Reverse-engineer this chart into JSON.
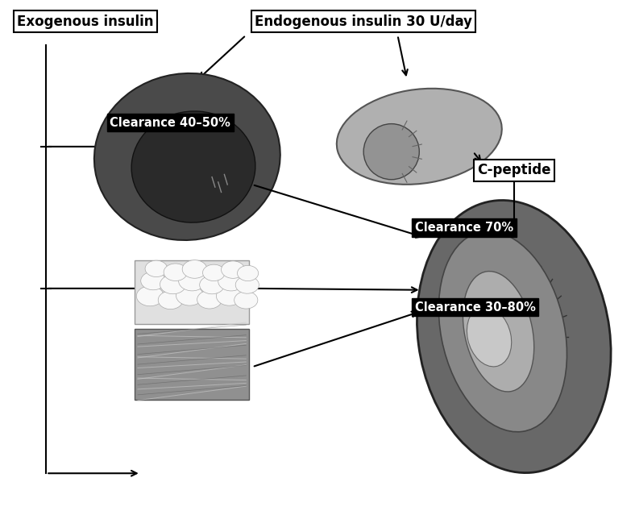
{
  "fig_width": 7.88,
  "fig_height": 6.34,
  "bg_color": "#ffffff",
  "labels": {
    "exogenous": "Exogenous insulin",
    "endogenous": "Endogenous insulin 30 U/day",
    "clearance_liver": "Clearance 40–50%",
    "c_peptide": "C-peptide",
    "clearance_kidney_top": "Clearance 70%",
    "clearance_kidney_bot": "Clearance 30–80%"
  },
  "label_box_color": "#000000",
  "label_text_color": "#ffffff",
  "outline_box_color": "#000000",
  "outline_box_fill": "#ffffff",
  "outline_text_color": "#000000",
  "arrow_color": "#000000",
  "arrow_lw": 1.5
}
